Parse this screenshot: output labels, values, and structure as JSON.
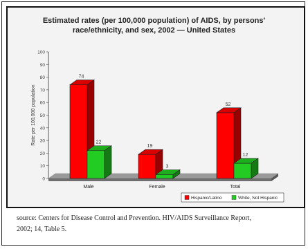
{
  "chart_data": {
    "type": "bar",
    "title_lines": [
      "Estimated rates (per 100,000 population) of AIDS, by persons'",
      "race/ethnicity, and sex, 2002 — United States"
    ],
    "ylabel": "Rate per 100,000 population",
    "ylim": [
      0,
      100
    ],
    "yticks": [
      0,
      10,
      20,
      30,
      40,
      50,
      60,
      70,
      80,
      90,
      100
    ],
    "categories": [
      "Male",
      "Female",
      "Total"
    ],
    "series": [
      {
        "name": "Hispanic/Latino",
        "color": "#ff0000",
        "values": [
          74,
          19,
          52
        ]
      },
      {
        "name": "White, Not Hispanic",
        "color": "#22cc22",
        "values": [
          22,
          3,
          12
        ]
      }
    ],
    "data_labels": [
      [
        "74",
        "22"
      ],
      [
        "19",
        "3"
      ],
      [
        "52",
        "12"
      ]
    ],
    "legend_position": "bottom-right",
    "grid": false
  },
  "source_lines": [
    "source: Centers for Disease Control and Prevention. HIV/AIDS Surveillance Report,",
    "2002; 14, Table 5."
  ]
}
